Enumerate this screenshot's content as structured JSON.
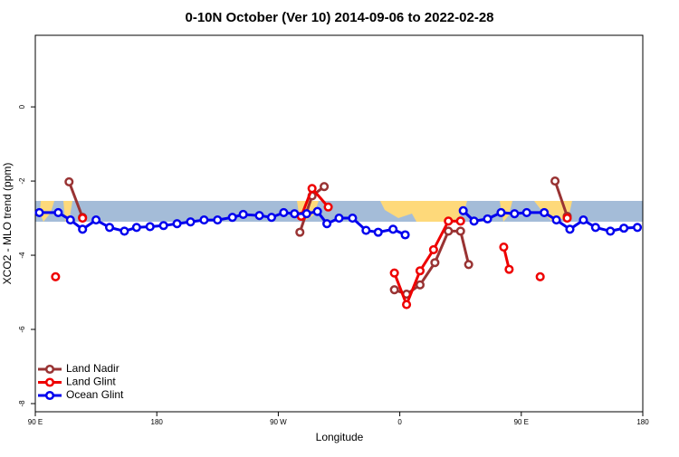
{
  "chart_data": {
    "type": "line",
    "title": "0-10N October (Ver 10)   2014-09-06 to 2022-02-28",
    "x_label": "Longitude",
    "y_label": "XCO2 - MLO trend (ppm)",
    "xlim": [
      90,
      540
    ],
    "ylim": [
      -8.22,
      1.93
    ],
    "xticks": [
      {
        "value": 90,
        "label": "90 E"
      },
      180,
      {
        "value": 270,
        "label": "90 W"
      },
      {
        "value": 360,
        "label": "0"
      },
      {
        "value": 450,
        "label": "90 E"
      },
      {
        "value": 540,
        "label": "180"
      }
    ],
    "yticks": [
      0,
      -2,
      -4,
      -6,
      -8
    ],
    "legend": "bottom-left",
    "series": [
      {
        "name": "Land Nadir",
        "color": "#993333",
        "x": [
          115,
          125,
          205,
          286,
          295,
          304,
          330,
          356,
          365,
          375,
          386,
          396,
          405,
          411,
          440,
          475,
          484
        ],
        "values": [
          -2.02,
          -2.98,
          null,
          -3.38,
          -2.4,
          -2.15,
          null,
          -4.93,
          -5.05,
          -4.8,
          -4.2,
          -3.35,
          -3.35,
          -4.25,
          null,
          -2.0,
          -2.95
        ]
      },
      {
        "name": "Land Glint",
        "color": "#ee0000",
        "x": [
          105,
          115,
          125,
          205,
          287,
          295,
          307,
          330,
          356,
          365,
          375,
          385,
          396,
          405,
          420,
          437,
          441,
          453,
          464,
          475,
          484
        ],
        "values": [
          -4.58,
          null,
          -3.0,
          null,
          -2.95,
          -2.2,
          -2.7,
          null,
          -4.48,
          -5.33,
          -4.42,
          -3.85,
          -3.08,
          -3.08,
          null,
          -3.78,
          -4.38,
          null,
          -4.58,
          null,
          -3.0
        ]
      },
      {
        "name": "Ocean Glint",
        "color": "#0000ee",
        "x": [
          93,
          107,
          116,
          125,
          135,
          145,
          156,
          165,
          175,
          185,
          195,
          205,
          215,
          225,
          236,
          244,
          256,
          265,
          274,
          282,
          291,
          299,
          306,
          315,
          325,
          335,
          344,
          355,
          364,
          385,
          407,
          415,
          425,
          435,
          445,
          454,
          467,
          476,
          486,
          496,
          505,
          516,
          526,
          536
        ],
        "values": [
          -2.85,
          -2.85,
          -3.05,
          -3.3,
          -3.05,
          -3.25,
          -3.35,
          -3.25,
          -3.23,
          -3.2,
          -3.15,
          -3.1,
          -3.05,
          -3.05,
          -2.98,
          -2.9,
          -2.93,
          -2.98,
          -2.85,
          -2.88,
          -2.88,
          -2.82,
          -3.15,
          -3.0,
          -3.0,
          -3.33,
          -3.38,
          -3.3,
          -3.45,
          null,
          -2.8,
          -3.08,
          -3.02,
          -2.85,
          -2.88,
          -2.85,
          -2.85,
          -3.05,
          -3.3,
          -3.05,
          -3.25,
          -3.35,
          -3.27,
          -3.25
        ]
      }
    ]
  }
}
